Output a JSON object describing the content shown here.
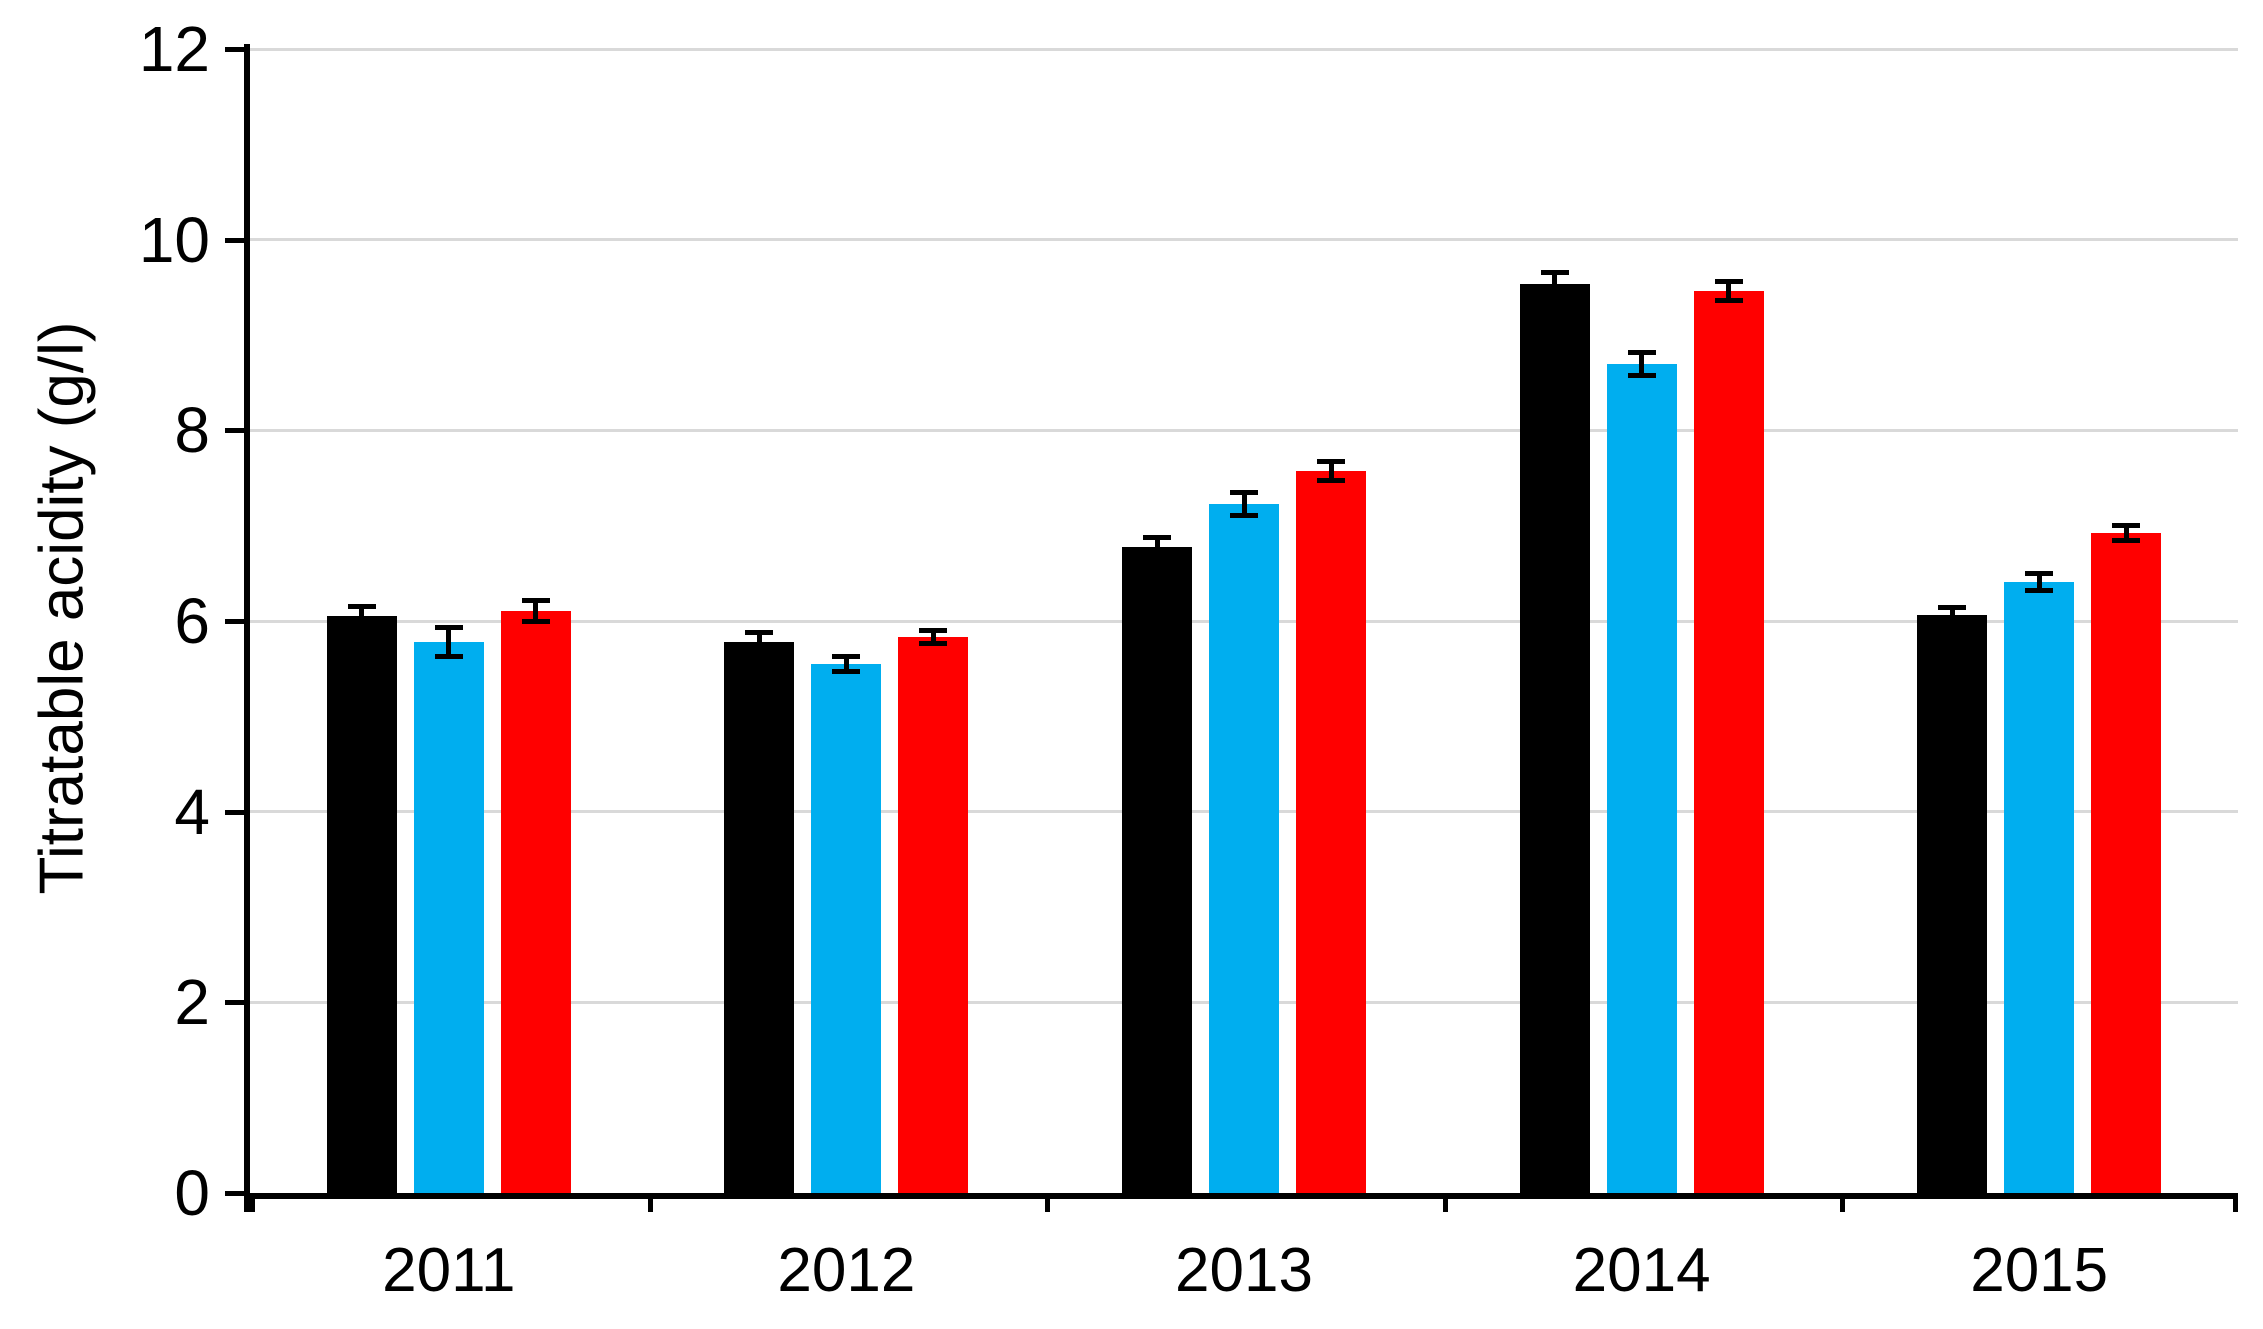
{
  "chart_data": {
    "type": "bar",
    "title": "",
    "xlabel": "",
    "ylabel": "Titratable acidity (g/l)",
    "ylim": [
      0,
      12
    ],
    "yticks": [
      0,
      2,
      4,
      6,
      8,
      10,
      12
    ],
    "grid": "horizontal",
    "legend_position": "none",
    "error_bars": true,
    "categories": [
      "2011",
      "2012",
      "2013",
      "2014",
      "2015"
    ],
    "series": [
      {
        "name": "black",
        "color": "#000000",
        "values": [
          6.05,
          5.78,
          6.78,
          9.53,
          6.06
        ],
        "errors": [
          0.1,
          0.1,
          0.1,
          0.13,
          0.08
        ]
      },
      {
        "name": "blue",
        "color": "#00AEEF",
        "values": [
          5.78,
          5.55,
          7.23,
          8.7,
          6.41
        ],
        "errors": [
          0.15,
          0.08,
          0.12,
          0.12,
          0.09
        ]
      },
      {
        "name": "red",
        "color": "#FF0000",
        "values": [
          6.1,
          5.83,
          7.57,
          9.46,
          6.92
        ],
        "errors": [
          0.11,
          0.07,
          0.1,
          0.1,
          0.08
        ]
      }
    ]
  },
  "colors": {
    "background": "#FFFFFF",
    "axis": "#000000",
    "gridline": "#D9D9D9",
    "error_bar": "#000000",
    "text": "#000000"
  }
}
